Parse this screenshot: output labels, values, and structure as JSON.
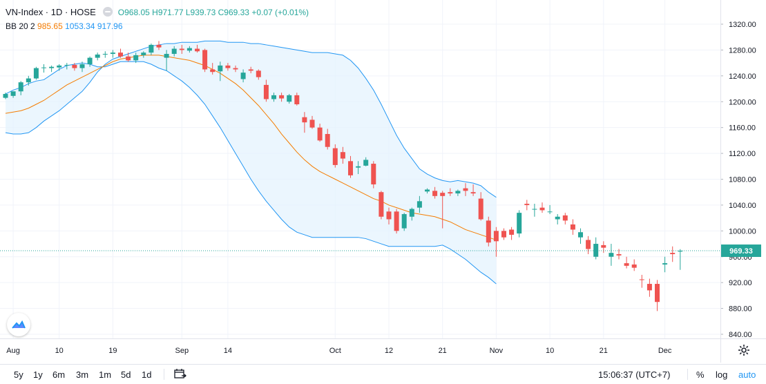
{
  "legend": {
    "symbol": "VN-Index · 1D · HOSE",
    "open": "O968.05",
    "high": "H971.77",
    "low": "L939.73",
    "close": "C969.33",
    "change": "+0.07 (+0.01%)",
    "bb_label": "BB 20 2",
    "bb_basis": "985.65",
    "bb_upper": "1053.34",
    "bb_lower": "917.96"
  },
  "price_tag": "969.33",
  "toolbar": {
    "ranges": [
      "5y",
      "1y",
      "6m",
      "3m",
      "1m",
      "5d",
      "1d"
    ],
    "time": "15:06:37 (UTC+7)",
    "percent": "%",
    "log": "log",
    "auto": "auto"
  },
  "colors": {
    "up": "#26a69a",
    "down": "#ef5350",
    "basis": "#f57c00",
    "band": "#2196f3",
    "band_fill": "#e3f2fd"
  },
  "icons": [
    "eye-icon",
    "tradingview-logo-icon",
    "gear-icon",
    "calendar-range-icon"
  ],
  "chart_data": {
    "type": "candlestick",
    "ylim": [
      820,
      1340
    ],
    "y_ticks": [
      840,
      880,
      920,
      960,
      1000,
      1040,
      1080,
      1120,
      1160,
      1200,
      1240,
      1280,
      1320
    ],
    "x_ticks": [
      {
        "label": "Aug",
        "i": 1
      },
      {
        "label": "10",
        "i": 7
      },
      {
        "label": "19",
        "i": 14
      },
      {
        "label": "Sep",
        "i": 23
      },
      {
        "label": "14",
        "i": 29
      },
      {
        "label": "Oct",
        "i": 43
      },
      {
        "label": "12",
        "i": 50
      },
      {
        "label": "21",
        "i": 57
      },
      {
        "label": "Nov",
        "i": 64
      },
      {
        "label": "10",
        "i": 71
      },
      {
        "label": "21",
        "i": 78
      },
      {
        "label": "Dec",
        "i": 86
      }
    ],
    "last_price": 969.33,
    "candles": [
      [
        1206,
        1214,
        1204,
        1212
      ],
      [
        1209,
        1216,
        1206,
        1216
      ],
      [
        1216,
        1232,
        1210,
        1230
      ],
      [
        1230,
        1240,
        1225,
        1236
      ],
      [
        1236,
        1254,
        1234,
        1252
      ],
      [
        1252,
        1258,
        1245,
        1253
      ],
      [
        1252,
        1256,
        1246,
        1254
      ],
      [
        1253,
        1258,
        1248,
        1256
      ],
      [
        1256,
        1260,
        1250,
        1257
      ],
      [
        1257,
        1260,
        1248,
        1252
      ],
      [
        1252,
        1262,
        1246,
        1258
      ],
      [
        1258,
        1270,
        1254,
        1268
      ],
      [
        1268,
        1276,
        1264,
        1273
      ],
      [
        1273,
        1278,
        1268,
        1274
      ],
      [
        1274,
        1280,
        1268,
        1276
      ],
      [
        1276,
        1282,
        1268,
        1270
      ],
      [
        1270,
        1276,
        1262,
        1264
      ],
      [
        1264,
        1276,
        1260,
        1272
      ],
      [
        1272,
        1278,
        1268,
        1276
      ],
      [
        1276,
        1290,
        1272,
        1288
      ],
      [
        1288,
        1294,
        1280,
        1284
      ],
      [
        1268,
        1280,
        1248,
        1274
      ],
      [
        1274,
        1286,
        1270,
        1282
      ],
      [
        1282,
        1288,
        1274,
        1280
      ],
      [
        1279,
        1286,
        1276,
        1283
      ],
      [
        1282,
        1288,
        1276,
        1278
      ],
      [
        1280,
        1282,
        1246,
        1250
      ],
      [
        1250,
        1260,
        1242,
        1246
      ],
      [
        1247,
        1262,
        1232,
        1256
      ],
      [
        1256,
        1260,
        1248,
        1252
      ],
      [
        1252,
        1256,
        1246,
        1250
      ],
      [
        1235,
        1250,
        1230,
        1245
      ],
      [
        1250,
        1254,
        1244,
        1248
      ],
      [
        1248,
        1250,
        1234,
        1238
      ],
      [
        1226,
        1234,
        1200,
        1204
      ],
      [
        1204,
        1214,
        1200,
        1210
      ],
      [
        1210,
        1214,
        1200,
        1205
      ],
      [
        1200,
        1212,
        1197,
        1210
      ],
      [
        1210,
        1214,
        1194,
        1196
      ],
      [
        1176,
        1184,
        1152,
        1168
      ],
      [
        1172,
        1178,
        1158,
        1160
      ],
      [
        1160,
        1166,
        1138,
        1140
      ],
      [
        1150,
        1158,
        1126,
        1130
      ],
      [
        1128,
        1134,
        1098,
        1102
      ],
      [
        1122,
        1130,
        1104,
        1112
      ],
      [
        1108,
        1116,
        1082,
        1086
      ],
      [
        1098,
        1108,
        1088,
        1100
      ],
      [
        1101,
        1114,
        1100,
        1110
      ],
      [
        1104,
        1108,
        1066,
        1072
      ],
      [
        1060,
        1062,
        1018,
        1022
      ],
      [
        1030,
        1036,
        1010,
        1018
      ],
      [
        1030,
        1034,
        996,
        1000
      ],
      [
        1004,
        1028,
        1000,
        1026
      ],
      [
        1022,
        1036,
        1016,
        1034
      ],
      [
        1036,
        1054,
        1028,
        1046
      ],
      [
        1061,
        1066,
        1058,
        1064
      ],
      [
        1062,
        1068,
        1050,
        1054
      ],
      [
        1059,
        1062,
        1004,
        1054
      ],
      [
        1060,
        1066,
        1054,
        1058
      ],
      [
        1058,
        1064,
        1054,
        1062
      ],
      [
        1066,
        1074,
        1054,
        1062
      ],
      [
        1060,
        1072,
        1054,
        1058
      ],
      [
        1050,
        1060,
        1016,
        1018
      ],
      [
        1016,
        1022,
        976,
        982
      ],
      [
        1000,
        1006,
        960,
        984
      ],
      [
        1000,
        1004,
        986,
        990
      ],
      [
        1002,
        1006,
        986,
        994
      ],
      [
        996,
        1032,
        990,
        1028
      ],
      [
        1042,
        1048,
        1032,
        1040
      ],
      [
        1034,
        1042,
        1022,
        1034
      ],
      [
        1036,
        1044,
        1028,
        1032
      ],
      [
        1030,
        1040,
        1026,
        1030
      ],
      [
        1018,
        1026,
        1010,
        1022
      ],
      [
        1024,
        1028,
        1010,
        1016
      ],
      [
        1010,
        1018,
        994,
        1002
      ],
      [
        990,
        1004,
        980,
        998
      ],
      [
        986,
        992,
        964,
        972
      ],
      [
        960,
        990,
        956,
        980
      ],
      [
        978,
        984,
        966,
        974
      ],
      [
        960,
        980,
        946,
        966
      ],
      [
        964,
        972,
        956,
        962
      ],
      [
        950,
        960,
        942,
        946
      ],
      [
        948,
        956,
        938,
        943
      ],
      [
        925,
        932,
        912,
        924
      ],
      [
        918,
        926,
        898,
        908
      ],
      [
        918,
        924,
        876,
        890
      ],
      [
        948,
        960,
        936,
        950
      ],
      [
        966,
        976,
        952,
        964
      ],
      [
        968.05,
        971.77,
        939.73,
        969.33
      ]
    ],
    "bb_upper": [
      1152,
      1150,
      1150,
      1152,
      1160,
      1170,
      1178,
      1186,
      1196,
      1206,
      1216,
      1230,
      1246,
      1258,
      1266,
      1270,
      1274,
      1278,
      1282,
      1286,
      1288,
      1290,
      1290,
      1292,
      1292,
      1292,
      1294,
      1294,
      1294,
      1292,
      1292,
      1292,
      1290,
      1290,
      1288,
      1286,
      1284,
      1282,
      1280,
      1278,
      1276,
      1276,
      1276,
      1274,
      1272,
      1264,
      1252,
      1236,
      1218,
      1196,
      1172,
      1148,
      1128,
      1112,
      1096,
      1088,
      1082,
      1078,
      1076,
      1078,
      1076,
      1074,
      1070,
      1060,
      1052
    ],
    "bb_basis": [
      1182,
      1184,
      1186,
      1190,
      1196,
      1202,
      1210,
      1218,
      1226,
      1232,
      1238,
      1244,
      1250,
      1256,
      1262,
      1266,
      1268,
      1270,
      1272,
      1272,
      1272,
      1270,
      1268,
      1266,
      1264,
      1260,
      1256,
      1250,
      1244,
      1236,
      1228,
      1218,
      1206,
      1194,
      1180,
      1166,
      1150,
      1136,
      1122,
      1110,
      1100,
      1092,
      1086,
      1080,
      1074,
      1068,
      1062,
      1056,
      1050,
      1046,
      1040,
      1036,
      1032,
      1028,
      1026,
      1024,
      1022,
      1018,
      1014,
      1008,
      1002,
      998,
      994,
      990,
      986
    ],
    "bb_lower": [
      1212,
      1218,
      1222,
      1228,
      1232,
      1234,
      1242,
      1250,
      1256,
      1258,
      1260,
      1258,
      1254,
      1254,
      1258,
      1262,
      1262,
      1262,
      1262,
      1258,
      1252,
      1248,
      1240,
      1232,
      1222,
      1210,
      1196,
      1178,
      1160,
      1140,
      1120,
      1100,
      1080,
      1062,
      1046,
      1032,
      1018,
      1006,
      998,
      994,
      990,
      990,
      990,
      990,
      990,
      990,
      990,
      988,
      984,
      980,
      976,
      976,
      976,
      976,
      976,
      976,
      976,
      978,
      972,
      964,
      956,
      946,
      936,
      928,
      918
    ]
  }
}
